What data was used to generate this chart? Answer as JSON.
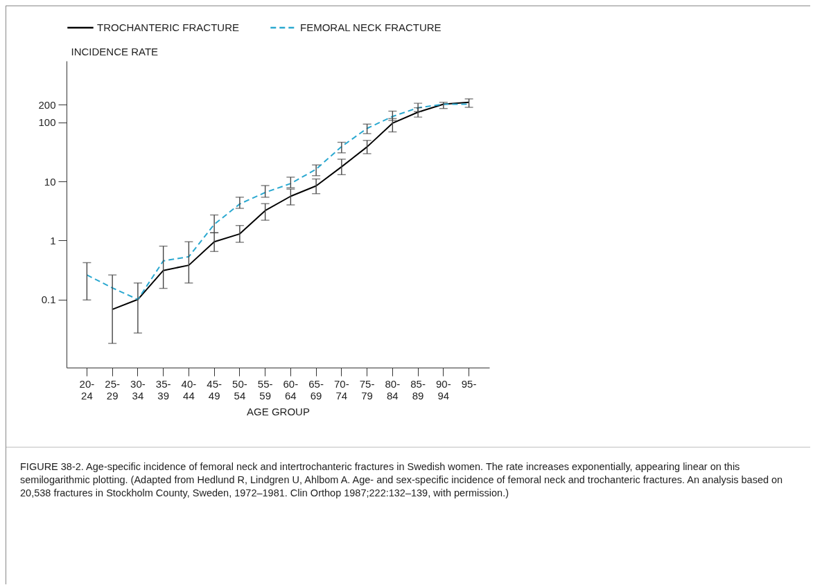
{
  "chart_data": {
    "type": "line",
    "categories": [
      "20-\n24",
      "25-\n29",
      "30-\n34",
      "35-\n39",
      "40-\n44",
      "45-\n49",
      "50-\n54",
      "55-\n59",
      "60-\n64",
      "65-\n69",
      "70-\n74",
      "75-\n79",
      "80-\n84",
      "85-\n89",
      "90-\n94",
      "95-"
    ],
    "series": [
      {
        "name": "TROCHANTERIC FRACTURE",
        "color": "#000000",
        "line_style": "solid",
        "values": [
          null,
          0.068,
          0.1,
          0.31,
          0.38,
          0.95,
          1.29,
          3.2,
          5.6,
          8.4,
          17.7,
          38.5,
          97,
          149,
          203,
          219
        ],
        "errors": [
          null,
          [
            0.018,
            0.26
          ],
          [
            0.027,
            0.19
          ],
          [
            0.154,
            0.8
          ],
          [
            0.19,
            0.95
          ],
          [
            0.65,
            1.35
          ],
          [
            0.93,
            1.79
          ],
          [
            2.2,
            4.2
          ],
          [
            4.0,
            7.4
          ],
          [
            6.2,
            11
          ],
          [
            13,
            23.8
          ],
          [
            29.5,
            49.5
          ],
          [
            69,
            116
          ],
          [
            123,
            177
          ],
          [
            172,
            219
          ],
          [
            180,
            250
          ]
        ]
      },
      {
        "name": "FEMORAL NECK FRACTURE",
        "color": "#2aa8d0",
        "line_style": "dashed",
        "values": [
          0.26,
          0.157,
          0.1,
          0.45,
          0.53,
          1.87,
          4.15,
          6.5,
          9.2,
          16.1,
          39,
          79,
          126,
          177,
          203,
          203
        ],
        "errors": [
          [
            0.098,
            0.42
          ],
          null,
          null,
          null,
          null,
          [
            1.35,
            2.7
          ],
          [
            3.5,
            5.4
          ],
          [
            5.4,
            8.5
          ],
          [
            7.8,
            11.8
          ],
          [
            12.5,
            19
          ],
          [
            30.5,
            46
          ],
          [
            64.5,
            93.5
          ],
          [
            108,
            155
          ],
          [
            152,
            211
          ],
          null,
          null
        ]
      }
    ],
    "xlabel": "AGE GROUP",
    "ylabel": "INCIDENCE RATE",
    "log": "y",
    "ylim": [
      0.007,
      1100
    ],
    "yticks": [
      0.1,
      1,
      10,
      100,
      200
    ],
    "grid": false,
    "legend": "top",
    "marker": "none",
    "annotations": [
      "FIGURE 38-2. Age-specific incidence of femoral neck and intertrochanteric fractures in Swedish women. The rate increases exponentially, appearing linear on this semilogarithmic plotting. (Adapted from Hedlund R, Lindgren U, Ahlbom A. Age- and sex-specific incidence of femoral neck and trochanteric fractures. An analysis based on 20,538 fractures in Stockholm County, Sweden, 1972–1981. Clin Orthop 1987;222:132–139, with permission.)"
    ]
  }
}
